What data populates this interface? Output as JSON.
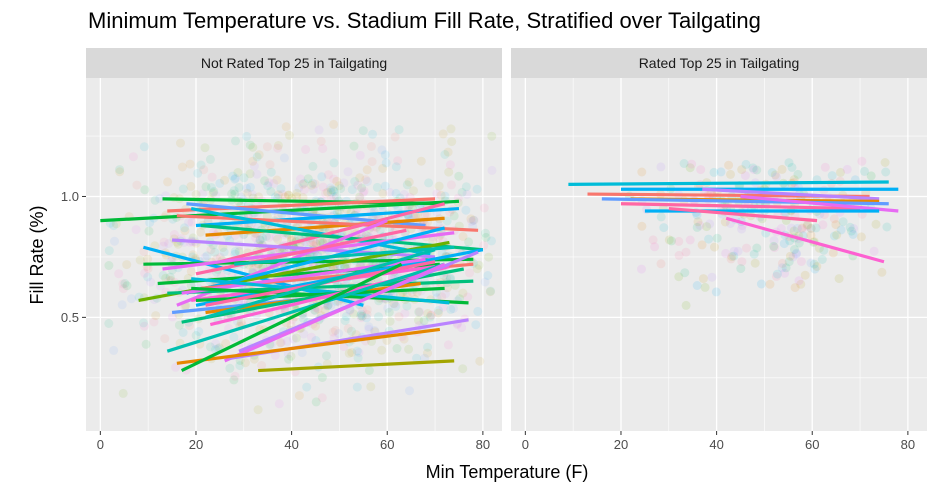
{
  "chart_data": {
    "type": "scatter",
    "title": "Minimum Temperature vs. Stadium Fill Rate, Stratified over Tailgating",
    "xlabel": "Min Temperature (F)",
    "ylabel": "Fill Rate (%)",
    "xlim": [
      -3,
      84
    ],
    "ylim": [
      0.03,
      1.49
    ],
    "x_ticks": [
      0,
      20,
      40,
      60,
      80
    ],
    "x_tick_labels": [
      "0",
      "20",
      "40",
      "60",
      "80"
    ],
    "y_ticks": [
      0.5,
      1.0
    ],
    "y_tick_labels": [
      "0.5",
      "1.0"
    ],
    "grid": true,
    "background": "#ebebeb",
    "strip_fill": "#d9d9d9",
    "palette": [
      "#F8766D",
      "#E58700",
      "#C99800",
      "#A3A500",
      "#6BB100",
      "#00BA38",
      "#00BF7D",
      "#00C0AF",
      "#00BCD8",
      "#00B0F6",
      "#619CFF",
      "#B983FF",
      "#E76BF3",
      "#FD61D1",
      "#FF67A4"
    ],
    "panels": [
      {
        "strip": "Not Rated Top 25 in Tailgating",
        "points": {
          "x_range": [
            0,
            82
          ],
          "y_range": [
            0.1,
            1.3
          ],
          "count": 1400,
          "center": [
            45,
            0.75
          ],
          "opacity": 0.1
        },
        "lines": [
          {
            "x": [
              0,
              75
            ],
            "y": [
              0.9,
              0.98
            ],
            "color": "#00BA38"
          },
          {
            "x": [
              13,
              72
            ],
            "y": [
              0.99,
              0.97
            ],
            "color": "#00BA38"
          },
          {
            "x": [
              14,
              70
            ],
            "y": [
              0.94,
              0.99
            ],
            "color": "#F8766D"
          },
          {
            "x": [
              18,
              68
            ],
            "y": [
              0.97,
              0.88
            ],
            "color": "#619CFF"
          },
          {
            "x": [
              20,
              75
            ],
            "y": [
              0.88,
              0.95
            ],
            "color": "#00B0F6"
          },
          {
            "x": [
              22,
              72
            ],
            "y": [
              0.84,
              0.91
            ],
            "color": "#E58700"
          },
          {
            "x": [
              16,
              79
            ],
            "y": [
              0.92,
              0.86
            ],
            "color": "#F8766D"
          },
          {
            "x": [
              19,
              69
            ],
            "y": [
              0.95,
              0.76
            ],
            "color": "#00BCD8"
          },
          {
            "x": [
              25,
              72
            ],
            "y": [
              0.73,
              0.97
            ],
            "color": "#FF67A4"
          },
          {
            "x": [
              15,
              70
            ],
            "y": [
              0.82,
              0.75
            ],
            "color": "#B983FF"
          },
          {
            "x": [
              21,
              80
            ],
            "y": [
              0.88,
              0.78
            ],
            "color": "#00BF7D"
          },
          {
            "x": [
              9,
              55
            ],
            "y": [
              0.79,
              0.55
            ],
            "color": "#00B0F6"
          },
          {
            "x": [
              9,
              78
            ],
            "y": [
              0.72,
              0.74
            ],
            "color": "#00BA38"
          },
          {
            "x": [
              12,
              71
            ],
            "y": [
              0.64,
              0.72
            ],
            "color": "#00BA38"
          },
          {
            "x": [
              13,
              74
            ],
            "y": [
              0.7,
              0.85
            ],
            "color": "#E76BF3"
          },
          {
            "x": [
              16,
              60
            ],
            "y": [
              0.55,
              0.9
            ],
            "color": "#E76BF3"
          },
          {
            "x": [
              8,
              73
            ],
            "y": [
              0.57,
              0.81
            ],
            "color": "#6BB100"
          },
          {
            "x": [
              18,
              72
            ],
            "y": [
              0.6,
              0.87
            ],
            "color": "#00B0F6"
          },
          {
            "x": [
              21,
              78
            ],
            "y": [
              0.62,
              0.72
            ],
            "color": "#F8766D"
          },
          {
            "x": [
              19,
              70
            ],
            "y": [
              0.57,
              0.71
            ],
            "color": "#FD61D1"
          },
          {
            "x": [
              20,
              64
            ],
            "y": [
              0.68,
              0.86
            ],
            "color": "#FF67A4"
          },
          {
            "x": [
              28,
              74
            ],
            "y": [
              0.72,
              0.79
            ],
            "color": "#00C0AF"
          },
          {
            "x": [
              20,
              80
            ],
            "y": [
              0.55,
              0.78
            ],
            "color": "#00B0F6"
          },
          {
            "x": [
              14,
              78
            ],
            "y": [
              0.6,
              0.65
            ],
            "color": "#00BF7D"
          },
          {
            "x": [
              17,
              68
            ],
            "y": [
              0.6,
              0.74
            ],
            "color": "#E76BF3"
          },
          {
            "x": [
              15,
              55
            ],
            "y": [
              0.52,
              0.6
            ],
            "color": "#619CFF"
          },
          {
            "x": [
              19,
              77
            ],
            "y": [
              0.62,
              0.56
            ],
            "color": "#00BA38"
          },
          {
            "x": [
              22,
              67
            ],
            "y": [
              0.52,
              0.64
            ],
            "color": "#E58700"
          },
          {
            "x": [
              19,
              73
            ],
            "y": [
              0.66,
              0.56
            ],
            "color": "#00BCD8"
          },
          {
            "x": [
              20,
              72
            ],
            "y": [
              0.57,
              0.62
            ],
            "color": "#00BA38"
          },
          {
            "x": [
              22,
              70
            ],
            "y": [
              0.55,
              0.73
            ],
            "color": "#FF67A4"
          },
          {
            "x": [
              17,
              76
            ],
            "y": [
              0.48,
              0.7
            ],
            "color": "#00BF7D"
          },
          {
            "x": [
              22,
              70
            ],
            "y": [
              0.5,
              0.78
            ],
            "color": "#00C0AF"
          },
          {
            "x": [
              23,
              73
            ],
            "y": [
              0.47,
              0.71
            ],
            "color": "#FD61D1"
          },
          {
            "x": [
              14,
              72
            ],
            "y": [
              0.36,
              0.72
            ],
            "color": "#00C0AF"
          },
          {
            "x": [
              29,
              79
            ],
            "y": [
              0.36,
              0.77
            ],
            "color": "#B983FF"
          },
          {
            "x": [
              26,
              72
            ],
            "y": [
              0.32,
              0.72
            ],
            "color": "#E76BF3"
          },
          {
            "x": [
              27,
              77
            ],
            "y": [
              0.33,
              0.49
            ],
            "color": "#B983FF"
          },
          {
            "x": [
              16,
              71
            ],
            "y": [
              0.31,
              0.45
            ],
            "color": "#E58700"
          },
          {
            "x": [
              17,
              63
            ],
            "y": [
              0.28,
              0.72
            ],
            "color": "#00BA38"
          },
          {
            "x": [
              33,
              74
            ],
            "y": [
              0.28,
              0.32
            ],
            "color": "#A3A500"
          }
        ]
      },
      {
        "strip": "Rated Top 25 in Tailgating",
        "points": {
          "x_range": [
            20,
            78
          ],
          "y_range": [
            0.35,
            1.15
          ],
          "count": 280,
          "center": [
            50,
            0.93
          ],
          "opacity": 0.12
        },
        "lines": [
          {
            "x": [
              9,
              76
            ],
            "y": [
              1.05,
              1.06
            ],
            "color": "#00BCD8"
          },
          {
            "x": [
              20,
              78
            ],
            "y": [
              1.03,
              1.03
            ],
            "color": "#00B0F6"
          },
          {
            "x": [
              13,
              72
            ],
            "y": [
              1.01,
              1.0
            ],
            "color": "#F8766D"
          },
          {
            "x": [
              37,
              74
            ],
            "y": [
              1.03,
              0.99
            ],
            "color": "#B983FF"
          },
          {
            "x": [
              22,
              74
            ],
            "y": [
              0.99,
              0.98
            ],
            "color": "#E58700"
          },
          {
            "x": [
              16,
              76
            ],
            "y": [
              0.99,
              0.97
            ],
            "color": "#619CFF"
          },
          {
            "x": [
              20,
              70
            ],
            "y": [
              0.97,
              0.95
            ],
            "color": "#FF67A4"
          },
          {
            "x": [
              45,
              78
            ],
            "y": [
              1.0,
              0.94
            ],
            "color": "#E76BF3"
          },
          {
            "x": [
              25,
              74
            ],
            "y": [
              0.94,
              0.94
            ],
            "color": "#00B0F6"
          },
          {
            "x": [
              30,
              61
            ],
            "y": [
              0.95,
              0.9
            ],
            "color": "#FF67A4"
          },
          {
            "x": [
              42,
              75
            ],
            "y": [
              0.91,
              0.73
            ],
            "color": "#FD61D1"
          }
        ]
      }
    ]
  }
}
